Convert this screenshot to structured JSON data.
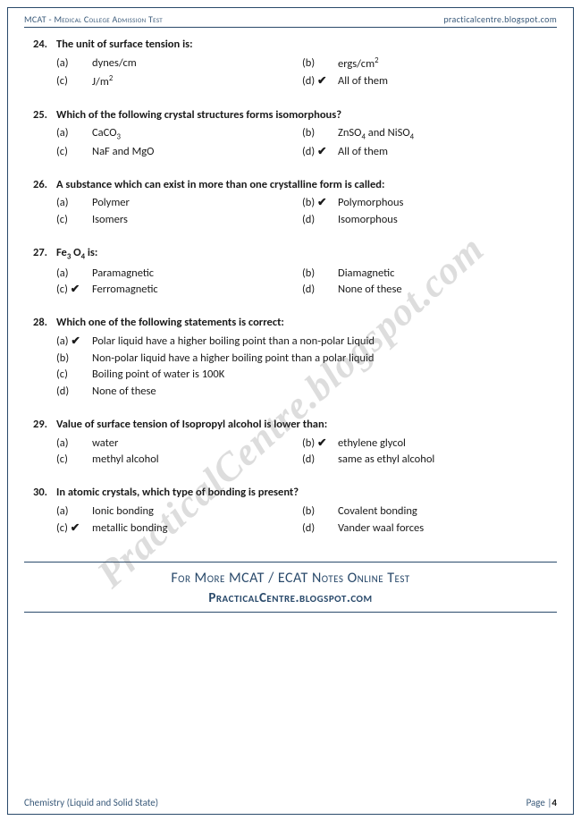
{
  "header": {
    "left": "MCAT - Medical College Admission Test",
    "right": "practicalcentre.blogspot.com"
  },
  "watermark": "PracticalCentre.blogspot.com",
  "questions": [
    {
      "num": "24.",
      "text": "The unit of surface tension is:",
      "layout": "grid",
      "opts": [
        {
          "label": "(a)",
          "check": "",
          "html": "dynes/cm"
        },
        {
          "label": "(b)",
          "check": "",
          "html": "ergs/cm<sup>2</sup>"
        },
        {
          "label": "(c)",
          "check": "",
          "html": "J/m<sup>2</sup>"
        },
        {
          "label": "(d)",
          "check": "✔",
          "html": "All of them"
        }
      ]
    },
    {
      "num": "25.",
      "text": "Which of the following crystal structures forms isomorphous?",
      "layout": "grid",
      "opts": [
        {
          "label": "(a)",
          "check": "",
          "html": "CaCO<sub>3</sub>"
        },
        {
          "label": "(b)",
          "check": "",
          "html": "ZnSO<sub>4</sub> and NiSO<sub>4</sub>"
        },
        {
          "label": "(c)",
          "check": "",
          "html": "NaF and MgO"
        },
        {
          "label": "(d)",
          "check": "✔",
          "html": "All of them"
        }
      ]
    },
    {
      "num": "26.",
      "text": "A substance which can exist in more than one crystalline form is called:",
      "layout": "grid",
      "opts": [
        {
          "label": "(a)",
          "check": "",
          "html": "Polymer"
        },
        {
          "label": "(b)",
          "check": "✔",
          "html": "Polymorphous"
        },
        {
          "label": "(c)",
          "check": "",
          "html": "Isomers"
        },
        {
          "label": "(d)",
          "check": "",
          "html": "Isomorphous"
        }
      ]
    },
    {
      "num": "27.",
      "text_html": "Fe<sub>3</sub> O<sub>4</sub> is:",
      "layout": "grid",
      "opts": [
        {
          "label": "(a)",
          "check": "",
          "html": "Paramagnetic"
        },
        {
          "label": "(b)",
          "check": "",
          "html": "Diamagnetic"
        },
        {
          "label": "(c)",
          "check": "✔",
          "html": "Ferromagnetic"
        },
        {
          "label": "(d)",
          "check": "",
          "html": "None of these"
        }
      ]
    },
    {
      "num": "28.",
      "text": "Which one of the following statements is correct:",
      "layout": "vert",
      "opts": [
        {
          "label": "(a)",
          "check": "✔",
          "html": "Polar liquid have a higher boiling point than a non-polar Liquid"
        },
        {
          "label": "(b)",
          "check": "",
          "html": "Non-polar liquid have a higher boiling point than a polar liquid"
        },
        {
          "label": "(c)",
          "check": "",
          "html": "Boiling point of water is 100K"
        },
        {
          "label": "(d)",
          "check": "",
          "html": "None of these"
        }
      ]
    },
    {
      "num": "29.",
      "text": "Value of surface tension of Isopropyl alcohol is lower than:",
      "layout": "grid",
      "opts": [
        {
          "label": "(a)",
          "check": "",
          "html": "water"
        },
        {
          "label": "(b)",
          "check": "✔",
          "html": "ethylene glycol"
        },
        {
          "label": "(c)",
          "check": "",
          "html": "methyl alcohol"
        },
        {
          "label": "(d)",
          "check": "",
          "html": "same as ethyl alcohol"
        }
      ]
    },
    {
      "num": "30.",
      "text": "In atomic crystals, which type of bonding is present?",
      "layout": "grid",
      "opts": [
        {
          "label": "(a)",
          "check": "",
          "html": "Ionic bonding"
        },
        {
          "label": "(b)",
          "check": "",
          "html": "Covalent bonding"
        },
        {
          "label": "(c)",
          "check": "✔",
          "html": "metallic bonding"
        },
        {
          "label": "(d)",
          "check": "",
          "html": "Vander waal forces"
        }
      ]
    }
  ],
  "footerBox": {
    "line1": "For More MCAT / ECAT Notes Online Test",
    "line2": "PracticalCentre.blogspot.com"
  },
  "footer": {
    "left": "Chemistry (Liquid and Solid State)",
    "rightPrefix": "Page |",
    "rightNum": "4"
  },
  "colors": {
    "border": "#2a4a6b",
    "accentText": "#3a5a7a",
    "bodyText": "#1a1a1a",
    "watermark": "rgba(100,100,100,0.22)",
    "background": "#ffffff"
  }
}
